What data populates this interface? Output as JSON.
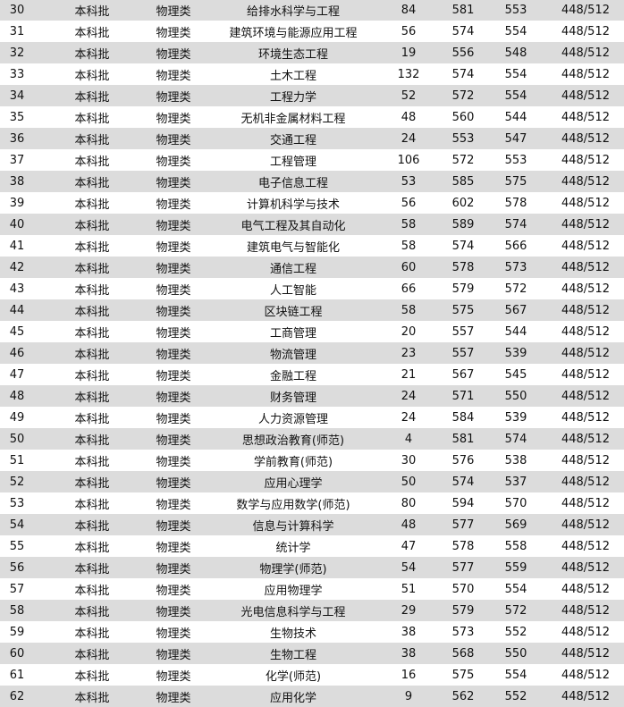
{
  "table": {
    "rows": [
      [
        "30",
        "本科批",
        "物理类",
        "给排水科学与工程",
        "84",
        "581",
        "553",
        "448/512"
      ],
      [
        "31",
        "本科批",
        "物理类",
        "建筑环境与能源应用工程",
        "56",
        "574",
        "554",
        "448/512"
      ],
      [
        "32",
        "本科批",
        "物理类",
        "环境生态工程",
        "19",
        "556",
        "548",
        "448/512"
      ],
      [
        "33",
        "本科批",
        "物理类",
        "土木工程",
        "132",
        "574",
        "554",
        "448/512"
      ],
      [
        "34",
        "本科批",
        "物理类",
        "工程力学",
        "52",
        "572",
        "554",
        "448/512"
      ],
      [
        "35",
        "本科批",
        "物理类",
        "无机非金属材料工程",
        "48",
        "560",
        "544",
        "448/512"
      ],
      [
        "36",
        "本科批",
        "物理类",
        "交通工程",
        "24",
        "553",
        "547",
        "448/512"
      ],
      [
        "37",
        "本科批",
        "物理类",
        "工程管理",
        "106",
        "572",
        "553",
        "448/512"
      ],
      [
        "38",
        "本科批",
        "物理类",
        "电子信息工程",
        "53",
        "585",
        "575",
        "448/512"
      ],
      [
        "39",
        "本科批",
        "物理类",
        "计算机科学与技术",
        "56",
        "602",
        "578",
        "448/512"
      ],
      [
        "40",
        "本科批",
        "物理类",
        "电气工程及其自动化",
        "58",
        "589",
        "574",
        "448/512"
      ],
      [
        "41",
        "本科批",
        "物理类",
        "建筑电气与智能化",
        "58",
        "574",
        "566",
        "448/512"
      ],
      [
        "42",
        "本科批",
        "物理类",
        "通信工程",
        "60",
        "578",
        "573",
        "448/512"
      ],
      [
        "43",
        "本科批",
        "物理类",
        "人工智能",
        "66",
        "579",
        "572",
        "448/512"
      ],
      [
        "44",
        "本科批",
        "物理类",
        "区块链工程",
        "58",
        "575",
        "567",
        "448/512"
      ],
      [
        "45",
        "本科批",
        "物理类",
        "工商管理",
        "20",
        "557",
        "544",
        "448/512"
      ],
      [
        "46",
        "本科批",
        "物理类",
        "物流管理",
        "23",
        "557",
        "539",
        "448/512"
      ],
      [
        "47",
        "本科批",
        "物理类",
        "金融工程",
        "21",
        "567",
        "545",
        "448/512"
      ],
      [
        "48",
        "本科批",
        "物理类",
        "财务管理",
        "24",
        "571",
        "550",
        "448/512"
      ],
      [
        "49",
        "本科批",
        "物理类",
        "人力资源管理",
        "24",
        "584",
        "539",
        "448/512"
      ],
      [
        "50",
        "本科批",
        "物理类",
        "思想政治教育(师范)",
        "4",
        "581",
        "574",
        "448/512"
      ],
      [
        "51",
        "本科批",
        "物理类",
        "学前教育(师范)",
        "30",
        "576",
        "538",
        "448/512"
      ],
      [
        "52",
        "本科批",
        "物理类",
        "应用心理学",
        "50",
        "574",
        "537",
        "448/512"
      ],
      [
        "53",
        "本科批",
        "物理类",
        "数学与应用数学(师范)",
        "80",
        "594",
        "570",
        "448/512"
      ],
      [
        "54",
        "本科批",
        "物理类",
        "信息与计算科学",
        "48",
        "577",
        "569",
        "448/512"
      ],
      [
        "55",
        "本科批",
        "物理类",
        "统计学",
        "47",
        "578",
        "558",
        "448/512"
      ],
      [
        "56",
        "本科批",
        "物理类",
        "物理学(师范)",
        "54",
        "577",
        "559",
        "448/512"
      ],
      [
        "57",
        "本科批",
        "物理类",
        "应用物理学",
        "51",
        "570",
        "554",
        "448/512"
      ],
      [
        "58",
        "本科批",
        "物理类",
        "光电信息科学与工程",
        "29",
        "579",
        "572",
        "448/512"
      ],
      [
        "59",
        "本科批",
        "物理类",
        "生物技术",
        "38",
        "573",
        "552",
        "448/512"
      ],
      [
        "60",
        "本科批",
        "物理类",
        "生物工程",
        "38",
        "568",
        "550",
        "448/512"
      ],
      [
        "61",
        "本科批",
        "物理类",
        "化学(师范)",
        "16",
        "575",
        "554",
        "448/512"
      ],
      [
        "62",
        "本科批",
        "物理类",
        "应用化学",
        "9",
        "562",
        "552",
        "448/512"
      ]
    ]
  },
  "colors": {
    "stripe": "#dcdcdc",
    "text": "#111111"
  }
}
